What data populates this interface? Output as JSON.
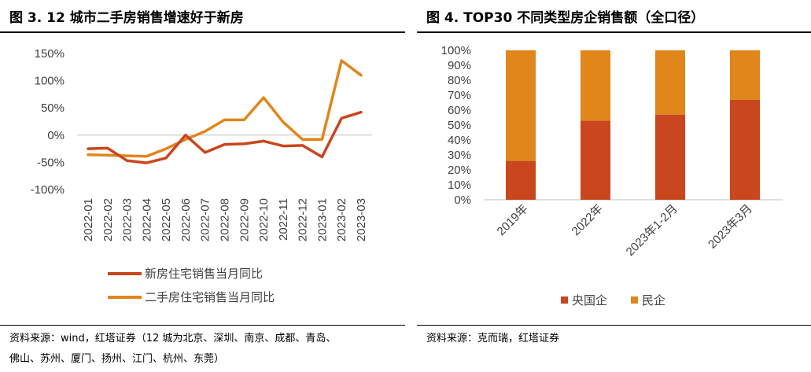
{
  "left": {
    "title": "图 3. 12 城市二手房销售增速好于新房",
    "source_line1": "资料来源：wind，红塔证券（12 城为北京、深圳、南京、成都、青岛、",
    "source_line2": "佛山、苏州、厦门、扬州、江门、杭州、东莞）",
    "chart_data": {
      "type": "line",
      "categories": [
        "2022-01",
        "2022-02",
        "2022-03",
        "2022-04",
        "2022-05",
        "2022-06",
        "2022-07",
        "2022-08",
        "2022-09",
        "2022-10",
        "2022-11",
        "2022-12",
        "2023-01",
        "2023-02",
        "2023-03"
      ],
      "yticks": [
        "150%",
        "100%",
        "50%",
        "0%",
        "-50%",
        "-100%"
      ],
      "ylim": [
        -100,
        150
      ],
      "series": [
        {
          "name": "新房住宅销售当月同比",
          "color": "#C9461E",
          "values": [
            -25,
            -24,
            -47,
            -51,
            -42,
            0,
            -32,
            -17,
            -16,
            -11,
            -20,
            -19,
            -40,
            31,
            42
          ]
        },
        {
          "name": "二手房住宅销售当月同比",
          "color": "#E0861A",
          "values": [
            -36,
            -37,
            -38,
            -39,
            -25,
            -8,
            7,
            28,
            28,
            69,
            24,
            -8,
            -8,
            137,
            110
          ]
        }
      ]
    }
  },
  "right": {
    "title": "图 4. TOP30 不同类型房企销售额（全口径）",
    "source": "资料来源：克而瑞，红塔证券",
    "chart_data": {
      "type": "bar",
      "stacked": true,
      "categories": [
        "2019年",
        "2022年",
        "2023年1-2月",
        "2023年3月"
      ],
      "yticks": [
        "100%",
        "90%",
        "80%",
        "70%",
        "60%",
        "50%",
        "40%",
        "30%",
        "20%",
        "10%",
        "0%"
      ],
      "ylim": [
        0,
        100
      ],
      "series": [
        {
          "name": "央国企",
          "color": "#C9461E",
          "values": [
            26,
            53,
            57,
            67
          ]
        },
        {
          "name": "民企",
          "color": "#E0861A",
          "values": [
            74,
            47,
            43,
            33
          ]
        }
      ]
    }
  }
}
